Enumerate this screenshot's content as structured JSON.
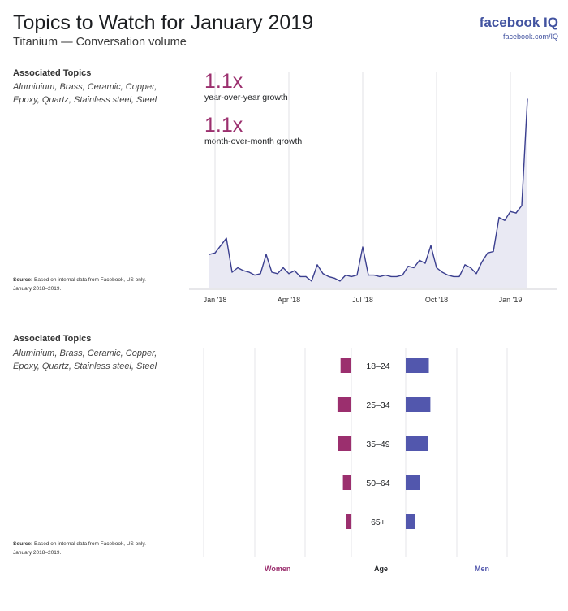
{
  "header": {
    "title": "Topics to Watch for January 2019",
    "subtitle": "Titanium — Conversation volume",
    "brand": "facebook IQ",
    "brand_url": "facebook.com/IQ"
  },
  "section1": {
    "topics_heading": "Associated Topics",
    "topics": "Aluminium, Brass, Ceramic, Copper, Epoxy, Quartz, Stainless steel, Steel",
    "source_label": "Source:",
    "source_text": "Based on internal data from Facebook, US only.",
    "source_range": "January 2018–2019.",
    "yoy_value": "1.1x",
    "yoy_label": "year-over-year growth",
    "mom_value": "1.1x",
    "mom_label": "month-over-month growth"
  },
  "section2": {
    "topics_heading": "Associated Topics",
    "topics": "Aluminium, Brass, Ceramic, Copper, Epoxy, Quartz, Stainless steel, Steel",
    "source_label": "Source:",
    "source_text": "Based on internal data from Facebook, US only.",
    "source_range": "January 2018–2019.",
    "women_label": "Women",
    "age_label": "Age",
    "men_label": "Men"
  },
  "colors": {
    "line": "#3b3f8f",
    "area": "#e9e9f3",
    "women": "#9b2f6e",
    "men": "#5257ad",
    "metric": "#9b2f6e",
    "brand": "#4253a0"
  },
  "chart_data": [
    {
      "type": "area",
      "title": "",
      "xlabel": "",
      "ylabel": "",
      "x_ticks": [
        "Jan '18",
        "Apr '18",
        "Jul '18",
        "Oct '18",
        "Jan '19"
      ],
      "x_tick_index": [
        1,
        14,
        27,
        40,
        53
      ],
      "values": [
        23,
        24,
        29,
        34,
        11,
        14,
        12,
        11,
        9,
        10,
        23,
        11,
        10,
        14,
        10,
        12,
        8,
        8,
        5,
        16,
        10,
        8,
        7,
        5,
        9,
        8,
        9,
        28,
        9,
        9,
        8,
        9,
        8,
        8,
        9,
        15,
        14,
        19,
        17,
        29,
        14,
        11,
        9,
        8,
        8,
        16,
        14,
        10,
        18,
        24,
        25,
        48,
        46,
        52,
        51,
        56,
        128
      ],
      "ylim": [
        0,
        140
      ],
      "grid": "vertical"
    },
    {
      "type": "bar",
      "title": "",
      "categories": [
        "18–24",
        "25–34",
        "35–49",
        "50–64",
        "65+"
      ],
      "series": [
        {
          "name": "Women",
          "values": [
            0.14,
            0.18,
            0.17,
            0.11,
            0.07
          ]
        },
        {
          "name": "Men",
          "values": [
            0.3,
            0.32,
            0.29,
            0.18,
            0.12
          ]
        }
      ],
      "xlim": [
        0,
        1
      ],
      "grid": "vertical"
    }
  ]
}
